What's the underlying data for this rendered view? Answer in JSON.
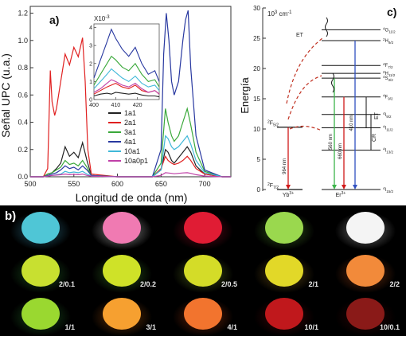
{
  "panel_a": {
    "label": "a)",
    "xlabel": "Longitud de onda (nm)",
    "ylabel": "Señal UPC (u.a.)",
    "inset_exponent": "X10",
    "inset_exponent_power": "-3"
  },
  "panel_b": {
    "label": "b)",
    "rows": [
      {
        "items": [
          {
            "color": "#4fc6d6",
            "glow": "#3fa0c0",
            "label": ""
          },
          {
            "color": "#f07ab2",
            "glow": "#ffffff",
            "label": ""
          },
          {
            "color": "#e01c34",
            "glow": "#b0102a",
            "label": ""
          },
          {
            "color": "#9ad84e",
            "glow": "#5aa030",
            "label": ""
          },
          {
            "color": "#f4f4f4",
            "glow": "#cccccc",
            "label": ""
          }
        ]
      },
      {
        "items": [
          {
            "color": "#c8e030",
            "glow": "#2c8a34",
            "label": "2/0.1"
          },
          {
            "color": "#cfe228",
            "glow": "#4a9a30",
            "label": "2/0.2"
          },
          {
            "color": "#d4dc28",
            "glow": "#7a9a28",
            "label": "2/0.5"
          },
          {
            "color": "#e2d828",
            "glow": "#a07a20",
            "label": "2/1"
          },
          {
            "color": "#f28a3a",
            "glow": "#c0501a",
            "label": "2/2"
          }
        ]
      },
      {
        "items": [
          {
            "color": "#9ad830",
            "glow": "#2c8a34",
            "label": "1/1"
          },
          {
            "color": "#f6a030",
            "glow": "#c06010",
            "label": "3/1"
          },
          {
            "color": "#f2742e",
            "glow": "#c04010",
            "label": "4/1"
          },
          {
            "color": "#c0181c",
            "glow": "#700a0c",
            "label": "10/1"
          },
          {
            "color": "#8a1a18",
            "glow": "#500808",
            "label": "10/0.1"
          }
        ]
      }
    ]
  },
  "panel_c": {
    "label": "c)",
    "ylabel": "Energía",
    "unit_prefix": "10",
    "unit_power": "3",
    "unit_suffix": "cm",
    "unit_suffix_power": "-1",
    "yb_label": "Yb",
    "yb_charge": "3+",
    "er_label": "Er",
    "er_charge": "3+",
    "et_label": "ET",
    "et_label2": "ET",
    "cr_label": "CR",
    "yb_levels": [
      {
        "sup": "2",
        "main": "F",
        "sub": "5/2",
        "energy": 10.3
      },
      {
        "sup": "2",
        "main": "F",
        "sub": "7/2",
        "energy": 0
      }
    ],
    "er_levels": [
      {
        "sup": "4",
        "main": "G",
        "sub": "11/2",
        "energy": 26.4
      },
      {
        "sup": "2",
        "main": "H",
        "sub": "9/2",
        "energy": 24.6
      },
      {
        "sup": "4",
        "main": "F",
        "sub": "7/2",
        "energy": 20.5
      },
      {
        "sup": "2",
        "main": "H",
        "sub": "11/2",
        "energy": 19.2
      },
      {
        "sup": "4",
        "main": "S",
        "sub": "3/2",
        "energy": 18.4
      },
      {
        "sup": "4",
        "main": "F",
        "sub": "9/2",
        "energy": 15.3
      },
      {
        "sup": "4",
        "main": "I",
        "sub": "9/2",
        "energy": 12.4
      },
      {
        "sup": "4",
        "main": "I",
        "sub": "11/2",
        "energy": 10.2
      },
      {
        "sup": "4",
        "main": "I",
        "sub": "13/2",
        "energy": 6.5
      },
      {
        "sup": "4",
        "main": "I",
        "sub": "15/2",
        "energy": 0
      }
    ],
    "transitions": [
      {
        "label": "964 nm",
        "color": "#d01818",
        "from": 10.3,
        "to": 0
      },
      {
        "label": "560 nm",
        "color": "#3cb44a",
        "from": 18.4,
        "to": 0
      },
      {
        "label": "660 nm",
        "color": "#d01818",
        "from": 15.3,
        "to": 0
      },
      {
        "label": "410 nm",
        "color": "#3050c0",
        "from": 24.6,
        "to": 0
      }
    ]
  },
  "chart_data": [
    {
      "type": "line",
      "title": "",
      "xlabel": "Longitud de onda (nm)",
      "ylabel": "Señal UPC (u.a.)",
      "xlim": [
        500,
        730
      ],
      "ylim": [
        0,
        1.25
      ],
      "xticks": [
        500,
        550,
        600,
        650,
        700
      ],
      "yticks": [
        0.0,
        0.2,
        0.4,
        0.6,
        0.8,
        1.0,
        1.2
      ],
      "legend_position": "right",
      "series": [
        {
          "name": "1a1",
          "color": "#222222",
          "x": [
            500,
            515,
            520,
            525,
            530,
            535,
            540,
            545,
            550,
            555,
            560,
            565,
            570,
            600,
            640,
            650,
            655,
            658,
            662,
            665,
            670,
            675,
            680,
            684,
            690,
            700,
            720,
            730
          ],
          "values": [
            0,
            0,
            0.02,
            0.03,
            0.06,
            0.1,
            0.22,
            0.15,
            0.18,
            0.14,
            0.25,
            0.12,
            0.01,
            0,
            0,
            0.05,
            0.2,
            0.18,
            0.12,
            0.1,
            0.14,
            0.18,
            0.22,
            0.18,
            0.08,
            0.02,
            0,
            0
          ]
        },
        {
          "name": "2a1",
          "color": "#e02020",
          "x": [
            500,
            515,
            520,
            523,
            525,
            528,
            530,
            535,
            540,
            545,
            550,
            555,
            560,
            563,
            566,
            570,
            600,
            640,
            650,
            655,
            658,
            662,
            665,
            670,
            675,
            680,
            684,
            690,
            700,
            720,
            730
          ],
          "values": [
            0,
            0,
            0.06,
            0.78,
            0.55,
            0.45,
            0.5,
            0.7,
            0.9,
            0.82,
            0.95,
            0.88,
            1.02,
            0.7,
            0.2,
            0.02,
            0,
            0,
            0.06,
            0.15,
            0.12,
            0.1,
            0.09,
            0.1,
            0.12,
            0.15,
            0.12,
            0.06,
            0.02,
            0,
            0
          ]
        },
        {
          "name": "3a1",
          "color": "#3aa83a",
          "x": [
            500,
            515,
            520,
            525,
            530,
            535,
            540,
            545,
            550,
            555,
            560,
            565,
            570,
            600,
            640,
            650,
            655,
            658,
            662,
            665,
            670,
            675,
            680,
            684,
            690,
            700,
            720,
            730
          ],
          "values": [
            0,
            0,
            0.02,
            0.03,
            0.05,
            0.07,
            0.12,
            0.09,
            0.1,
            0.08,
            0.12,
            0.07,
            0.01,
            0,
            0,
            0.1,
            0.5,
            0.4,
            0.3,
            0.26,
            0.3,
            0.4,
            0.5,
            0.38,
            0.18,
            0.04,
            0,
            0
          ]
        },
        {
          "name": "4a1",
          "color": "#2838a0",
          "x": [
            500,
            515,
            520,
            525,
            530,
            535,
            540,
            545,
            550,
            555,
            560,
            565,
            570,
            600,
            640,
            650,
            653,
            656,
            659,
            662,
            665,
            670,
            675,
            678,
            681,
            684,
            690,
            700,
            720,
            730
          ],
          "values": [
            0,
            0,
            0.01,
            0.02,
            0.03,
            0.05,
            0.08,
            0.06,
            0.07,
            0.05,
            0.08,
            0.05,
            0.01,
            0,
            0,
            0.2,
            0.9,
            1.2,
            1.0,
            0.7,
            0.6,
            0.7,
            1.0,
            1.15,
            1.22,
            0.8,
            0.3,
            0.05,
            0,
            0
          ]
        },
        {
          "name": "10a1",
          "color": "#40b8d8",
          "x": [
            500,
            515,
            520,
            525,
            530,
            535,
            540,
            545,
            550,
            555,
            560,
            565,
            570,
            600,
            640,
            650,
            655,
            658,
            662,
            665,
            670,
            675,
            680,
            684,
            690,
            700,
            720,
            730
          ],
          "values": [
            0,
            0,
            0.005,
            0.01,
            0.015,
            0.02,
            0.04,
            0.03,
            0.035,
            0.03,
            0.04,
            0.02,
            0.005,
            0,
            0,
            0.05,
            0.3,
            0.28,
            0.22,
            0.2,
            0.22,
            0.26,
            0.3,
            0.24,
            0.12,
            0.03,
            0,
            0
          ]
        },
        {
          "name": "10a0p1",
          "color": "#c040a8",
          "x": [
            500,
            515,
            520,
            525,
            530,
            535,
            540,
            545,
            550,
            555,
            560,
            565,
            570,
            600,
            640,
            650,
            655,
            658,
            662,
            665,
            670,
            675,
            680,
            684,
            690,
            700,
            720,
            730
          ],
          "values": [
            0,
            0,
            0.005,
            0.01,
            0.012,
            0.015,
            0.02,
            0.015,
            0.018,
            0.015,
            0.02,
            0.01,
            0.005,
            0,
            0,
            0.01,
            0.03,
            0.028,
            0.025,
            0.022,
            0.025,
            0.028,
            0.03,
            0.025,
            0.015,
            0.005,
            0,
            0
          ]
        }
      ]
    },
    {
      "type": "line",
      "title": "",
      "xlabel": "",
      "ylabel": "",
      "xlim": [
        400,
        430
      ],
      "ylim": [
        0,
        4.2
      ],
      "xticks": [
        400,
        410,
        420
      ],
      "yticks": [
        0,
        1,
        2,
        3,
        4
      ],
      "series": [
        {
          "name": "1a1",
          "color": "#222222",
          "x": [
            400,
            403,
            406,
            408,
            410,
            413,
            416,
            419,
            422,
            425,
            428,
            430
          ],
          "values": [
            0.2,
            0.3,
            0.35,
            0.3,
            0.4,
            0.35,
            0.3,
            0.35,
            0.25,
            0.2,
            0.2,
            0.15
          ]
        },
        {
          "name": "2a1",
          "color": "#e02020",
          "x": [
            400,
            403,
            406,
            408,
            410,
            413,
            416,
            419,
            422,
            425,
            428,
            430
          ],
          "values": [
            0.3,
            0.5,
            0.7,
            0.8,
            0.9,
            0.7,
            0.6,
            0.8,
            0.5,
            0.4,
            0.5,
            0.3
          ]
        },
        {
          "name": "3a1",
          "color": "#3aa83a",
          "x": [
            400,
            403,
            406,
            408,
            410,
            413,
            416,
            419,
            422,
            425,
            428,
            430
          ],
          "values": [
            0.8,
            1.4,
            2.0,
            2.4,
            2.2,
            1.8,
            1.6,
            2.0,
            1.4,
            1.0,
            1.1,
            0.7
          ]
        },
        {
          "name": "4a1",
          "color": "#2838a0",
          "x": [
            400,
            403,
            406,
            408,
            410,
            413,
            416,
            419,
            422,
            425,
            428,
            430
          ],
          "values": [
            1.2,
            2.2,
            3.2,
            3.9,
            3.4,
            2.8,
            2.4,
            2.9,
            2.0,
            1.4,
            1.6,
            1.0
          ]
        },
        {
          "name": "10a1",
          "color": "#40b8d8",
          "x": [
            400,
            403,
            406,
            408,
            410,
            413,
            416,
            419,
            422,
            425,
            428,
            430
          ],
          "values": [
            0.6,
            1.0,
            1.4,
            1.7,
            1.5,
            1.2,
            1.0,
            1.3,
            0.9,
            0.7,
            0.8,
            0.5
          ]
        },
        {
          "name": "10a0p1",
          "color": "#c040a8",
          "x": [
            400,
            403,
            406,
            408,
            410,
            413,
            416,
            419,
            422,
            425,
            428,
            430
          ],
          "values": [
            0.4,
            0.6,
            0.9,
            1.1,
            1.0,
            0.8,
            0.7,
            0.9,
            0.6,
            0.4,
            0.5,
            0.3
          ]
        }
      ]
    }
  ]
}
